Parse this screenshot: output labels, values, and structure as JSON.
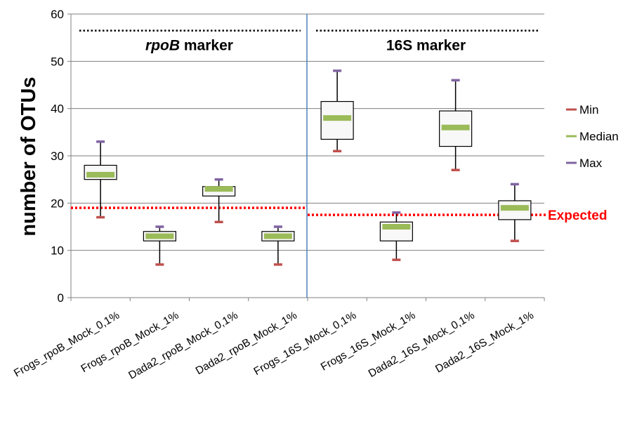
{
  "chart_data": {
    "type": "boxplot",
    "ylabel": "number of OTUs",
    "ylim": [
      0,
      60
    ],
    "yticks": [
      0,
      10,
      20,
      30,
      40,
      50,
      60
    ],
    "grid": true,
    "categories": [
      "Frogs_rpoB_Mock_0,1%",
      "Frogs_rpoB_Mock_1%",
      "Dada2_rpoB_Mock_0,1%",
      "Dada2_rpoB_Mock_1%",
      "Frogs_16S_Mock_0,1%",
      "Frogs_16S_Mock_1%",
      "Dada2_16S_Mock_0,1%",
      "Dada2_16S_Mock_1%"
    ],
    "boxes": [
      {
        "min": 17,
        "q1": 25,
        "median": 26,
        "q3": 28,
        "max": 33
      },
      {
        "min": 7,
        "q1": 12,
        "median": 13,
        "q3": 14,
        "max": 15
      },
      {
        "min": 16,
        "q1": 21.5,
        "median": 23,
        "q3": 23.5,
        "max": 25
      },
      {
        "min": 7,
        "q1": 12,
        "median": 13,
        "q3": 14,
        "max": 15
      },
      {
        "min": 31,
        "q1": 33.5,
        "median": 38,
        "q3": 41.5,
        "max": 48
      },
      {
        "min": 8,
        "q1": 12,
        "median": 15,
        "q3": 16,
        "max": 18
      },
      {
        "min": 27,
        "q1": 32,
        "median": 36,
        "q3": 39.5,
        "max": 46
      },
      {
        "min": 12,
        "q1": 16.5,
        "median": 19,
        "q3": 20.5,
        "max": 24
      }
    ],
    "sections": [
      {
        "label_italic": "rpoB",
        "label_rest": " marker",
        "from": 0,
        "to": 3
      },
      {
        "label_italic": "",
        "label_rest": "16S marker",
        "from": 4,
        "to": 7
      }
    ],
    "section_dotted_y": 56.5,
    "expected": [
      {
        "from": 0,
        "to": 3,
        "value": 19
      },
      {
        "from": 4,
        "to": 7,
        "value": 17.5
      }
    ],
    "expected_label": "Expected",
    "legend": [
      {
        "name": "Min",
        "color": "#c0504d"
      },
      {
        "name": "Median",
        "color": "#9bbb59"
      },
      {
        "name": "Max",
        "color": "#8064a2"
      }
    ],
    "legend_position": "right",
    "colors": {
      "expected": "#ff0000",
      "divider": "#4f81bd",
      "grid": "#7f7f7f",
      "box_fill": "#f8f8f8"
    }
  }
}
